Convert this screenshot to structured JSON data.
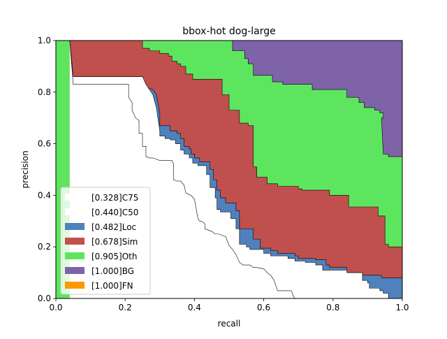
{
  "chart_data": {
    "type": "area",
    "title": "bbox-hot dog-large",
    "xlabel": "recall",
    "ylabel": "precision",
    "xlim": [
      0,
      1
    ],
    "ylim": [
      0,
      1
    ],
    "xticks": [
      "0.0",
      "0.2",
      "0.4",
      "0.6",
      "0.8",
      "1.0"
    ],
    "yticks": [
      "0.0",
      "0.2",
      "0.4",
      "0.6",
      "0.8",
      "1.0"
    ],
    "grid": false,
    "legend_position": "lower-left",
    "series": [
      {
        "name": "[1.000]FN",
        "color": "#ff9900",
        "points": [
          [
            0,
            1
          ],
          [
            1,
            1
          ]
        ]
      },
      {
        "name": "[1.000]BG",
        "color": "#7f63a8",
        "points": [
          [
            0,
            1
          ],
          [
            1,
            1
          ]
        ]
      },
      {
        "name": "[0.905]Oth",
        "color": "#5ee55f",
        "points": [
          [
            0,
            1
          ],
          [
            0.51,
            1
          ],
          [
            0.51,
            0.96
          ],
          [
            0.545,
            0.96
          ],
          [
            0.545,
            0.93
          ],
          [
            0.555,
            0.93
          ],
          [
            0.555,
            0.91
          ],
          [
            0.57,
            0.91
          ],
          [
            0.57,
            0.865
          ],
          [
            0.625,
            0.865
          ],
          [
            0.625,
            0.84
          ],
          [
            0.655,
            0.84
          ],
          [
            0.655,
            0.83
          ],
          [
            0.74,
            0.83
          ],
          [
            0.74,
            0.81
          ],
          [
            0.84,
            0.81
          ],
          [
            0.84,
            0.78
          ],
          [
            0.875,
            0.78
          ],
          [
            0.875,
            0.76
          ],
          [
            0.89,
            0.76
          ],
          [
            0.89,
            0.74
          ],
          [
            0.92,
            0.74
          ],
          [
            0.92,
            0.73
          ],
          [
            0.935,
            0.73
          ],
          [
            0.935,
            0.72
          ],
          [
            0.945,
            0.72
          ],
          [
            0.945,
            0.7
          ],
          [
            0.94,
            0.7
          ],
          [
            0.945,
            0.56
          ],
          [
            0.96,
            0.56
          ],
          [
            0.96,
            0.55
          ],
          [
            1,
            0.55
          ]
        ]
      },
      {
        "name": "[0.678]Sim",
        "color": "#c0504d",
        "points": [
          [
            0.04,
            1
          ],
          [
            0.25,
            1
          ],
          [
            0.25,
            0.97
          ],
          [
            0.27,
            0.97
          ],
          [
            0.27,
            0.96
          ],
          [
            0.3,
            0.96
          ],
          [
            0.3,
            0.95
          ],
          [
            0.325,
            0.95
          ],
          [
            0.325,
            0.94
          ],
          [
            0.335,
            0.94
          ],
          [
            0.335,
            0.92
          ],
          [
            0.35,
            0.92
          ],
          [
            0.35,
            0.91
          ],
          [
            0.36,
            0.91
          ],
          [
            0.36,
            0.9
          ],
          [
            0.375,
            0.9
          ],
          [
            0.375,
            0.87
          ],
          [
            0.395,
            0.87
          ],
          [
            0.395,
            0.85
          ],
          [
            0.48,
            0.85
          ],
          [
            0.48,
            0.79
          ],
          [
            0.5,
            0.79
          ],
          [
            0.5,
            0.73
          ],
          [
            0.53,
            0.73
          ],
          [
            0.53,
            0.68
          ],
          [
            0.555,
            0.68
          ],
          [
            0.555,
            0.67
          ],
          [
            0.57,
            0.67
          ],
          [
            0.57,
            0.51
          ],
          [
            0.58,
            0.51
          ],
          [
            0.58,
            0.47
          ],
          [
            0.61,
            0.47
          ],
          [
            0.61,
            0.445
          ],
          [
            0.64,
            0.445
          ],
          [
            0.64,
            0.435
          ],
          [
            0.7,
            0.435
          ],
          [
            0.7,
            0.425
          ],
          [
            0.71,
            0.425
          ],
          [
            0.71,
            0.42
          ],
          [
            0.79,
            0.42
          ],
          [
            0.79,
            0.4
          ],
          [
            0.845,
            0.4
          ],
          [
            0.845,
            0.355
          ],
          [
            0.93,
            0.355
          ],
          [
            0.93,
            0.32
          ],
          [
            0.95,
            0.32
          ],
          [
            0.95,
            0.21
          ],
          [
            0.96,
            0.21
          ],
          [
            0.96,
            0.2
          ],
          [
            1,
            0.2
          ]
        ]
      },
      {
        "name": "[0.482]Loc",
        "color": "#4f81bd",
        "points": [
          [
            0.04,
            1
          ],
          [
            0.05,
            0.86
          ],
          [
            0.25,
            0.86
          ],
          [
            0.26,
            0.82
          ],
          [
            0.28,
            0.81
          ],
          [
            0.29,
            0.79
          ],
          [
            0.3,
            0.72
          ],
          [
            0.3,
            0.67
          ],
          [
            0.33,
            0.67
          ],
          [
            0.33,
            0.65
          ],
          [
            0.35,
            0.65
          ],
          [
            0.35,
            0.64
          ],
          [
            0.36,
            0.64
          ],
          [
            0.36,
            0.62
          ],
          [
            0.37,
            0.62
          ],
          [
            0.37,
            0.59
          ],
          [
            0.385,
            0.59
          ],
          [
            0.385,
            0.58
          ],
          [
            0.39,
            0.58
          ],
          [
            0.39,
            0.56
          ],
          [
            0.4,
            0.56
          ],
          [
            0.4,
            0.545
          ],
          [
            0.415,
            0.545
          ],
          [
            0.415,
            0.53
          ],
          [
            0.445,
            0.53
          ],
          [
            0.445,
            0.5
          ],
          [
            0.455,
            0.5
          ],
          [
            0.455,
            0.46
          ],
          [
            0.465,
            0.46
          ],
          [
            0.465,
            0.42
          ],
          [
            0.475,
            0.42
          ],
          [
            0.475,
            0.39
          ],
          [
            0.49,
            0.39
          ],
          [
            0.49,
            0.37
          ],
          [
            0.52,
            0.37
          ],
          [
            0.52,
            0.34
          ],
          [
            0.53,
            0.34
          ],
          [
            0.53,
            0.27
          ],
          [
            0.57,
            0.27
          ],
          [
            0.57,
            0.23
          ],
          [
            0.59,
            0.23
          ],
          [
            0.59,
            0.195
          ],
          [
            0.62,
            0.195
          ],
          [
            0.62,
            0.185
          ],
          [
            0.64,
            0.185
          ],
          [
            0.64,
            0.175
          ],
          [
            0.69,
            0.175
          ],
          [
            0.69,
            0.165
          ],
          [
            0.7,
            0.165
          ],
          [
            0.7,
            0.155
          ],
          [
            0.75,
            0.155
          ],
          [
            0.75,
            0.15
          ],
          [
            0.78,
            0.15
          ],
          [
            0.78,
            0.13
          ],
          [
            0.79,
            0.13
          ],
          [
            0.79,
            0.12
          ],
          [
            0.84,
            0.12
          ],
          [
            0.84,
            0.1
          ],
          [
            0.875,
            0.1
          ],
          [
            0.875,
            0.09
          ],
          [
            0.94,
            0.09
          ],
          [
            0.94,
            0.08
          ],
          [
            1,
            0.08
          ]
        ]
      },
      {
        "name": "[0.440]C50",
        "color": "#ffffff",
        "points": [
          [
            0.04,
            1
          ],
          [
            0.05,
            0.86
          ],
          [
            0.25,
            0.86
          ],
          [
            0.26,
            0.83
          ],
          [
            0.27,
            0.81
          ],
          [
            0.28,
            0.79
          ],
          [
            0.29,
            0.74
          ],
          [
            0.3,
            0.65
          ],
          [
            0.3,
            0.63
          ],
          [
            0.315,
            0.63
          ],
          [
            0.315,
            0.62
          ],
          [
            0.33,
            0.62
          ],
          [
            0.33,
            0.615
          ],
          [
            0.345,
            0.615
          ],
          [
            0.345,
            0.6
          ],
          [
            0.36,
            0.6
          ],
          [
            0.36,
            0.575
          ],
          [
            0.37,
            0.575
          ],
          [
            0.37,
            0.56
          ],
          [
            0.385,
            0.56
          ],
          [
            0.385,
            0.545
          ],
          [
            0.395,
            0.545
          ],
          [
            0.395,
            0.525
          ],
          [
            0.41,
            0.525
          ],
          [
            0.41,
            0.515
          ],
          [
            0.435,
            0.515
          ],
          [
            0.435,
            0.48
          ],
          [
            0.445,
            0.48
          ],
          [
            0.445,
            0.43
          ],
          [
            0.46,
            0.43
          ],
          [
            0.46,
            0.39
          ],
          [
            0.465,
            0.39
          ],
          [
            0.465,
            0.345
          ],
          [
            0.475,
            0.345
          ],
          [
            0.475,
            0.335
          ],
          [
            0.505,
            0.335
          ],
          [
            0.505,
            0.31
          ],
          [
            0.52,
            0.31
          ],
          [
            0.52,
            0.27
          ],
          [
            0.53,
            0.27
          ],
          [
            0.53,
            0.21
          ],
          [
            0.55,
            0.21
          ],
          [
            0.55,
            0.2
          ],
          [
            0.56,
            0.2
          ],
          [
            0.56,
            0.19
          ],
          [
            0.6,
            0.19
          ],
          [
            0.6,
            0.175
          ],
          [
            0.62,
            0.175
          ],
          [
            0.62,
            0.165
          ],
          [
            0.67,
            0.165
          ],
          [
            0.67,
            0.155
          ],
          [
            0.69,
            0.155
          ],
          [
            0.69,
            0.145
          ],
          [
            0.72,
            0.145
          ],
          [
            0.72,
            0.14
          ],
          [
            0.75,
            0.14
          ],
          [
            0.75,
            0.13
          ],
          [
            0.77,
            0.13
          ],
          [
            0.77,
            0.11
          ],
          [
            0.84,
            0.11
          ],
          [
            0.84,
            0.1
          ],
          [
            0.885,
            0.1
          ],
          [
            0.885,
            0.07
          ],
          [
            0.9,
            0.07
          ],
          [
            0.9,
            0.06
          ],
          [
            0.905,
            0.06
          ],
          [
            0.905,
            0.04
          ],
          [
            0.935,
            0.04
          ],
          [
            0.935,
            0.03
          ],
          [
            0.945,
            0.03
          ],
          [
            0.945,
            0.02
          ],
          [
            0.96,
            0.02
          ],
          [
            0.96,
            0.0
          ],
          [
            1,
            0.0
          ]
        ]
      },
      {
        "name": "[0.328]C75",
        "color": "#ffffff",
        "points": [
          [
            0.04,
            1
          ],
          [
            0.05,
            0.83
          ],
          [
            0.21,
            0.83
          ],
          [
            0.21,
            0.78
          ],
          [
            0.22,
            0.76
          ],
          [
            0.22,
            0.73
          ],
          [
            0.23,
            0.7
          ],
          [
            0.24,
            0.69
          ],
          [
            0.24,
            0.64
          ],
          [
            0.25,
            0.64
          ],
          [
            0.25,
            0.59
          ],
          [
            0.26,
            0.59
          ],
          [
            0.26,
            0.55
          ],
          [
            0.27,
            0.545
          ],
          [
            0.28,
            0.545
          ],
          [
            0.29,
            0.54
          ],
          [
            0.3,
            0.535
          ],
          [
            0.335,
            0.535
          ],
          [
            0.34,
            0.52
          ],
          [
            0.34,
            0.46
          ],
          [
            0.35,
            0.455
          ],
          [
            0.36,
            0.455
          ],
          [
            0.37,
            0.44
          ],
          [
            0.375,
            0.41
          ],
          [
            0.38,
            0.405
          ],
          [
            0.39,
            0.4
          ],
          [
            0.4,
            0.385
          ],
          [
            0.41,
            0.31
          ],
          [
            0.415,
            0.3
          ],
          [
            0.42,
            0.3
          ],
          [
            0.43,
            0.29
          ],
          [
            0.43,
            0.27
          ],
          [
            0.44,
            0.265
          ],
          [
            0.45,
            0.26
          ],
          [
            0.46,
            0.25
          ],
          [
            0.47,
            0.25
          ],
          [
            0.48,
            0.245
          ],
          [
            0.49,
            0.24
          ],
          [
            0.5,
            0.205
          ],
          [
            0.51,
            0.19
          ],
          [
            0.52,
            0.17
          ],
          [
            0.53,
            0.14
          ],
          [
            0.54,
            0.13
          ],
          [
            0.56,
            0.13
          ],
          [
            0.57,
            0.12
          ],
          [
            0.58,
            0.12
          ],
          [
            0.6,
            0.115
          ],
          [
            0.61,
            0.1
          ],
          [
            0.62,
            0.09
          ],
          [
            0.63,
            0.07
          ],
          [
            0.64,
            0.03
          ],
          [
            0.66,
            0.03
          ],
          [
            0.67,
            0.03
          ],
          [
            0.68,
            0.03
          ],
          [
            0.685,
            0.01
          ],
          [
            0.69,
            0.0
          ],
          [
            1,
            0.0
          ]
        ]
      }
    ],
    "legend": [
      {
        "label": "[0.328]C75",
        "color": "#ffffff"
      },
      {
        "label": "[0.440]C50",
        "color": "#ffffff"
      },
      {
        "label": "[0.482]Loc",
        "color": "#4f81bd"
      },
      {
        "label": "[0.678]Sim",
        "color": "#c0504d"
      },
      {
        "label": "[0.905]Oth",
        "color": "#5ee55f"
      },
      {
        "label": "[1.000]BG",
        "color": "#7f63a8"
      },
      {
        "label": "[1.000]FN",
        "color": "#ff9900"
      }
    ]
  }
}
